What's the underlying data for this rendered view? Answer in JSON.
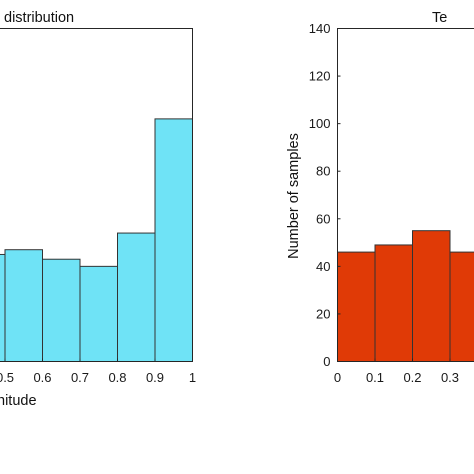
{
  "chart_data": [
    {
      "type": "bar",
      "title": "distribution",
      "xlabel": "nitude",
      "ylabel": "",
      "bar_color": "#6fe3f6",
      "edge_color": "#333333",
      "bin_width": 0.1,
      "bins_left": [
        0.4,
        0.5,
        0.6,
        0.7,
        0.8,
        0.9
      ],
      "values": [
        45,
        47,
        43,
        40,
        54,
        102
      ],
      "ylim": [
        0,
        140
      ],
      "xtick_labels": [
        "0.5",
        "0.6",
        "0.7",
        "0.8",
        "0.9",
        "1"
      ],
      "xtick_values": [
        0.5,
        0.6,
        0.7,
        0.8,
        0.9,
        1.0
      ],
      "grid": false
    },
    {
      "type": "bar",
      "title": "Te",
      "xlabel": "",
      "ylabel": "Number of samples",
      "bar_color": "#e03a06",
      "edge_color": "#333333",
      "bin_width": 0.1,
      "bins_left": [
        0.0,
        0.1,
        0.2,
        0.3
      ],
      "values": [
        46,
        49,
        55,
        46
      ],
      "ylim": [
        0,
        140
      ],
      "ytick_labels": [
        "0",
        "20",
        "40",
        "60",
        "80",
        "100",
        "120",
        "140"
      ],
      "ytick_values": [
        0,
        20,
        40,
        60,
        80,
        100,
        120,
        140
      ],
      "xtick_labels": [
        "0",
        "0.1",
        "0.2",
        "0.3"
      ],
      "xtick_values": [
        0,
        0.1,
        0.2,
        0.3
      ],
      "grid": false
    }
  ]
}
